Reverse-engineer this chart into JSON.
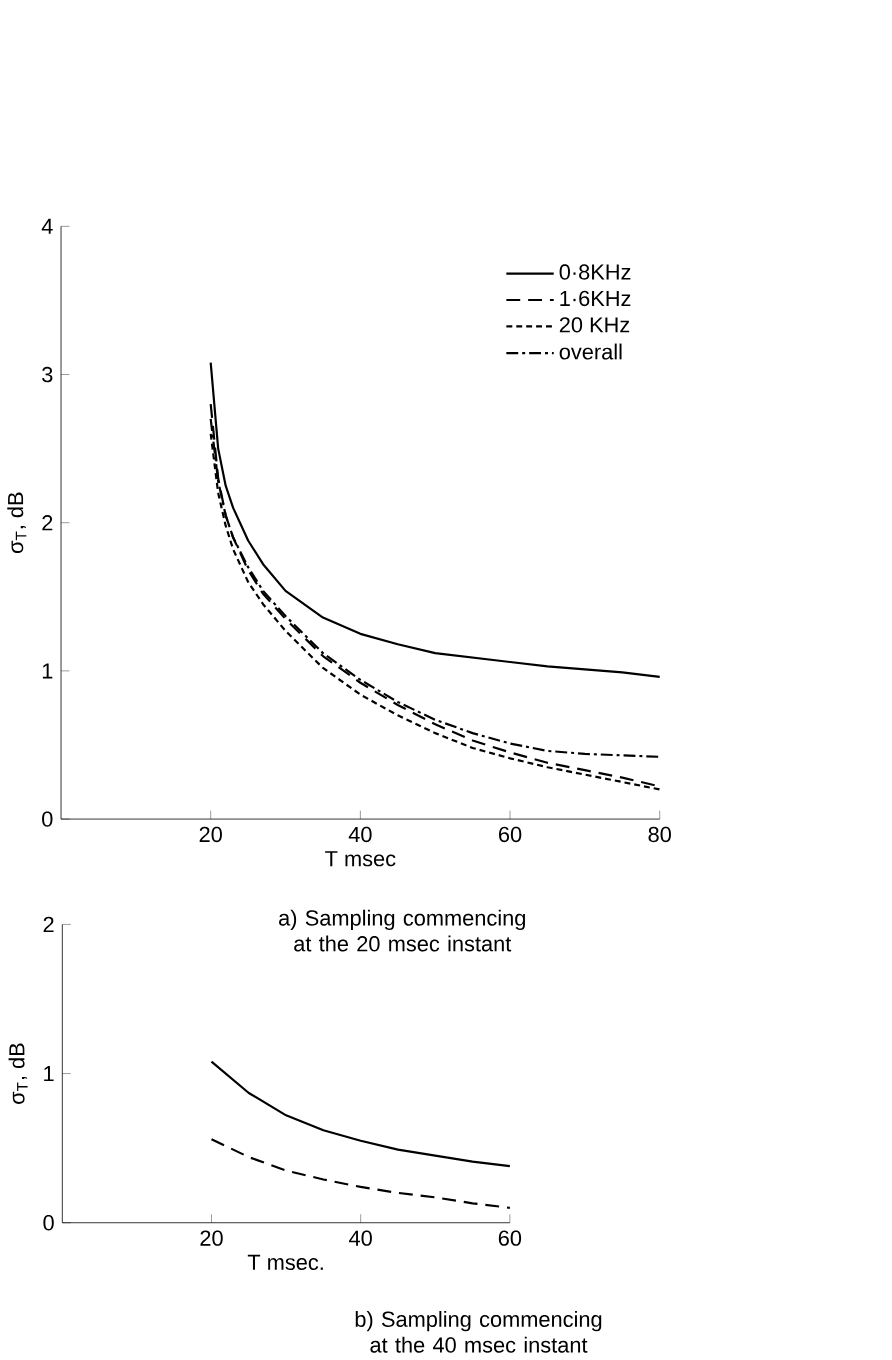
{
  "chart_data": [
    {
      "type": "line",
      "xlabel": "T msec",
      "ylabel": "σ$_{T}$, dB",
      "x": [
        20,
        21,
        22,
        23,
        25,
        27,
        30,
        35,
        40,
        45,
        50,
        55,
        60,
        65,
        70,
        75,
        80
      ],
      "xlim": [
        0,
        80
      ],
      "ylim": [
        0,
        4
      ],
      "xticks": [
        20,
        40,
        60,
        80
      ],
      "yticks": [
        0,
        1,
        2,
        3,
        4
      ],
      "legend": "top right",
      "series": [
        {
          "name": "0·8KHz",
          "color": "#000000",
          "line_style": "solid",
          "values": [
            3.08,
            2.5,
            2.25,
            2.1,
            1.88,
            1.72,
            1.54,
            1.36,
            1.25,
            1.18,
            1.12,
            1.09,
            1.06,
            1.03,
            1.01,
            0.99,
            0.96
          ]
        },
        {
          "name": "1·6KHz",
          "color": "#000000",
          "line_style": "dashed",
          "values": [
            2.8,
            2.3,
            2.05,
            1.9,
            1.68,
            1.52,
            1.35,
            1.1,
            0.92,
            0.77,
            0.64,
            0.53,
            0.45,
            0.38,
            0.33,
            0.28,
            0.22
          ]
        },
        {
          "name": "20 KHz",
          "color": "#000000",
          "line_style": "dotted",
          "values": [
            2.6,
            2.2,
            1.98,
            1.82,
            1.6,
            1.45,
            1.27,
            1.02,
            0.84,
            0.7,
            0.58,
            0.48,
            0.41,
            0.35,
            0.3,
            0.25,
            0.2
          ]
        },
        {
          "name": "overall",
          "color": "#000000",
          "line_style": "dashdot",
          "values": [
            2.7,
            2.28,
            2.05,
            1.9,
            1.7,
            1.54,
            1.37,
            1.12,
            0.94,
            0.79,
            0.67,
            0.58,
            0.51,
            0.46,
            0.44,
            0.43,
            0.42
          ]
        }
      ],
      "annotations": [
        "a) Sampling commencing at the 20 msec instant"
      ]
    },
    {
      "type": "line",
      "xlabel": "T msec.",
      "ylabel": "σ$_{T}$, dB",
      "x": [
        20,
        25,
        30,
        35,
        40,
        45,
        50,
        55,
        60
      ],
      "xlim": [
        0,
        60
      ],
      "ylim": [
        0,
        2
      ],
      "xticks": [
        20,
        40,
        60
      ],
      "yticks": [
        0,
        1,
        2
      ],
      "series": [
        {
          "color": "#000000",
          "line_style": "solid",
          "values": [
            1.08,
            0.87,
            0.72,
            0.62,
            0.55,
            0.49,
            0.45,
            0.41,
            0.38
          ]
        },
        {
          "color": "#000000",
          "line_style": "dashed",
          "values": [
            0.56,
            0.44,
            0.35,
            0.29,
            0.24,
            0.2,
            0.17,
            0.13,
            0.1
          ]
        }
      ],
      "annotations": [
        "b) Sampling commencing at the 40 msec instant"
      ]
    }
  ]
}
